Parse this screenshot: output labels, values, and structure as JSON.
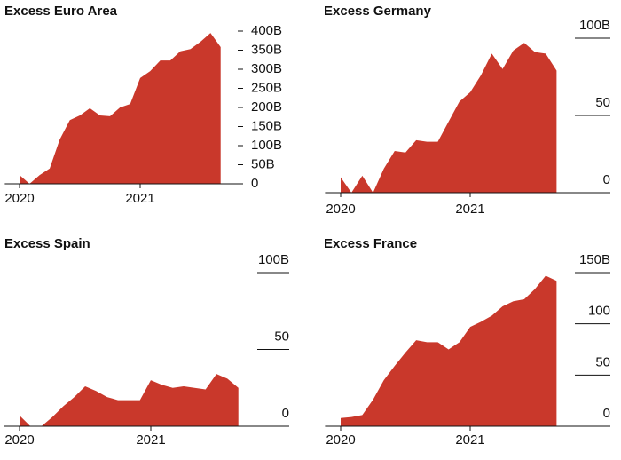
{
  "chart_data": [
    {
      "type": "area",
      "title": "Excess Euro Area",
      "color": "#c9382b",
      "x": [
        2020,
        2020.083,
        2020.167,
        2020.25,
        2020.333,
        2020.417,
        2020.5,
        2020.583,
        2020.667,
        2020.75,
        2020.833,
        2020.917,
        2021,
        2021.083,
        2021.167,
        2021.25,
        2021.333,
        2021.417,
        2021.5,
        2021.583,
        2021.667
      ],
      "values": [
        23,
        0,
        23,
        40,
        116,
        167,
        179,
        198,
        179,
        177,
        200,
        209,
        277,
        295,
        323,
        323,
        347,
        353,
        372,
        395,
        358
      ],
      "xlim": [
        2019.9,
        2021.8
      ],
      "xticks": [
        2020,
        2021
      ],
      "ylim": [
        0,
        400
      ],
      "yticks": [
        0,
        {
          "value": 50,
          "label": "50B"
        },
        {
          "value": 100,
          "label": "100B"
        },
        {
          "value": 150,
          "label": "150B"
        },
        {
          "value": 200,
          "label": "200B"
        },
        {
          "value": 250,
          "label": "250B"
        },
        {
          "value": 300,
          "label": "300B"
        },
        {
          "value": 350,
          "label": "350B"
        },
        {
          "value": 400,
          "label": "400B"
        }
      ]
    },
    {
      "type": "area",
      "title": "Excess Germany",
      "color": "#c9382b",
      "x": [
        2020,
        2020.083,
        2020.167,
        2020.25,
        2020.333,
        2020.417,
        2020.5,
        2020.583,
        2020.667,
        2020.75,
        2020.833,
        2020.917,
        2021,
        2021.083,
        2021.167,
        2021.25,
        2021.333,
        2021.417,
        2021.5,
        2021.583,
        2021.667
      ],
      "values": [
        10,
        0,
        11,
        0,
        15.5,
        27,
        26,
        34,
        33,
        33,
        46,
        59,
        65,
        76,
        90,
        80,
        92,
        97,
        91,
        90,
        79
      ],
      "xlim": [
        2019.9,
        2021.8
      ],
      "xticks": [
        2020,
        2021
      ],
      "ylim": [
        0,
        100
      ],
      "yticks": [
        0,
        50,
        {
          "value": 100,
          "label": "100B"
        }
      ]
    },
    {
      "type": "area",
      "title": "Excess Spain",
      "color": "#c9382b",
      "x": [
        2020,
        2020.083,
        2020.167,
        2020.25,
        2020.333,
        2020.417,
        2020.5,
        2020.583,
        2020.667,
        2020.75,
        2020.833,
        2020.917,
        2021,
        2021.083,
        2021.167,
        2021.25,
        2021.333,
        2021.417,
        2021.5,
        2021.583,
        2021.667
      ],
      "values": [
        7,
        0,
        0,
        6,
        13,
        19,
        26,
        23,
        19,
        17,
        17,
        17,
        30,
        27,
        25,
        26,
        25,
        24,
        34,
        31,
        25
      ],
      "xlim": [
        2019.9,
        2021.8
      ],
      "xticks": [
        2020,
        2021
      ],
      "ylim": [
        0,
        100
      ],
      "yticks": [
        0,
        50,
        {
          "value": 100,
          "label": "100B"
        }
      ]
    },
    {
      "type": "area",
      "title": "Excess France",
      "color": "#c9382b",
      "x": [
        2020,
        2020.083,
        2020.167,
        2020.25,
        2020.333,
        2020.417,
        2020.5,
        2020.583,
        2020.667,
        2020.75,
        2020.833,
        2020.917,
        2021,
        2021.083,
        2021.167,
        2021.25,
        2021.333,
        2021.417,
        2021.5,
        2021.583,
        2021.667
      ],
      "values": [
        8,
        9,
        11,
        26,
        45,
        59,
        72,
        84,
        82,
        82,
        75,
        82,
        97,
        102,
        108,
        117,
        122,
        124,
        134,
        147,
        142
      ],
      "xlim": [
        2019.9,
        2021.8
      ],
      "xticks": [
        2020,
        2021
      ],
      "ylim": [
        0,
        150
      ],
      "yticks": [
        0,
        50,
        100,
        {
          "value": 150,
          "label": "150B"
        }
      ]
    }
  ]
}
